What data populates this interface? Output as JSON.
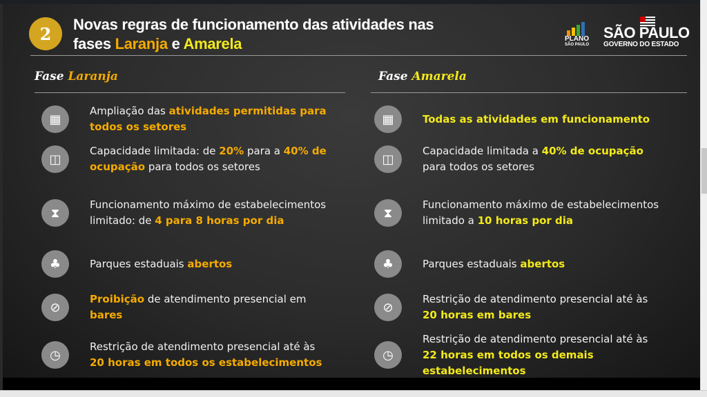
{
  "colors": {
    "laranja": "#f5ab00",
    "amarela": "#f3ea1a",
    "badge": "#d4a520",
    "icon_bg": "#8a8a8a"
  },
  "header": {
    "number": "2",
    "title_line1": "Novas regras de funcionamento das atividades nas",
    "title_fases": "fases ",
    "title_laranja": "Laranja",
    "title_e": " e ",
    "title_amarela": "Amarela",
    "logo_plano": "PLANO",
    "logo_plano_sub": "SÃO PAULO",
    "logo_sp": "SÃO PAULO",
    "logo_gov": "GOVERNO DO ESTADO"
  },
  "columns": [
    {
      "fase": "Fase ",
      "name": "Laranja",
      "items": [
        {
          "icon": "grid-icon",
          "segs": [
            {
              "t": "Ampliação das ",
              "h": false
            },
            {
              "t": "atividades permitidas para todos os setores",
              "h": true
            }
          ]
        },
        {
          "icon": "capacity-icon",
          "segs": [
            {
              "t": "Capacidade limitada: de ",
              "h": false
            },
            {
              "t": "20%",
              "h": true
            },
            {
              "t": " para a ",
              "h": false
            },
            {
              "t": "40% de ocupação",
              "h": true
            },
            {
              "t": " para todos os setores",
              "h": false
            }
          ]
        },
        {
          "icon": "hourglass-icon",
          "segs": [
            {
              "t": "Funcionamento máximo de estabelecimentos limitado: de ",
              "h": false
            },
            {
              "t": "4 para 8 horas por dia",
              "h": true
            }
          ]
        },
        {
          "icon": "tree-icon",
          "segs": [
            {
              "t": "Parques estaduais ",
              "h": false
            },
            {
              "t": "abertos",
              "h": true
            }
          ]
        },
        {
          "icon": "no-bar-icon",
          "segs": [
            {
              "t": "Proibição",
              "h": true
            },
            {
              "t": " de atendimento presencial em ",
              "h": false
            },
            {
              "t": "bares",
              "h": true
            }
          ]
        },
        {
          "icon": "clock-icon",
          "segs": [
            {
              "t": "Restrição de atendimento presencial até às ",
              "h": false
            },
            {
              "t": "20 horas em todos os estabelecimentos",
              "h": true
            }
          ]
        }
      ]
    },
    {
      "fase": "Fase ",
      "name": "Amarela",
      "items": [
        {
          "icon": "grid-icon",
          "segs": [
            {
              "t": "Todas as atividades em funcionamento",
              "h": true
            }
          ]
        },
        {
          "icon": "capacity-icon",
          "segs": [
            {
              "t": "Capacidade limitada a ",
              "h": false
            },
            {
              "t": "40% de ocupação",
              "h": true
            },
            {
              "t": " para todos os setores",
              "h": false
            }
          ]
        },
        {
          "icon": "hourglass-icon",
          "segs": [
            {
              "t": "Funcionamento máximo de estabelecimentos limitado a ",
              "h": false
            },
            {
              "t": "10 horas por dia",
              "h": true
            }
          ]
        },
        {
          "icon": "tree-icon",
          "segs": [
            {
              "t": "Parques estaduais ",
              "h": false
            },
            {
              "t": "abertos",
              "h": true
            }
          ]
        },
        {
          "icon": "no-bar-icon",
          "segs": [
            {
              "t": "Restrição de atendimento presencial até às ",
              "h": false
            },
            {
              "t": "20 horas em bares",
              "h": true
            }
          ]
        },
        {
          "icon": "clock-icon",
          "segs": [
            {
              "t": "Restrição de atendimento presencial até às ",
              "h": false
            },
            {
              "t": "22 horas em todos os demais estabelecimentos",
              "h": true
            }
          ]
        }
      ]
    }
  ]
}
